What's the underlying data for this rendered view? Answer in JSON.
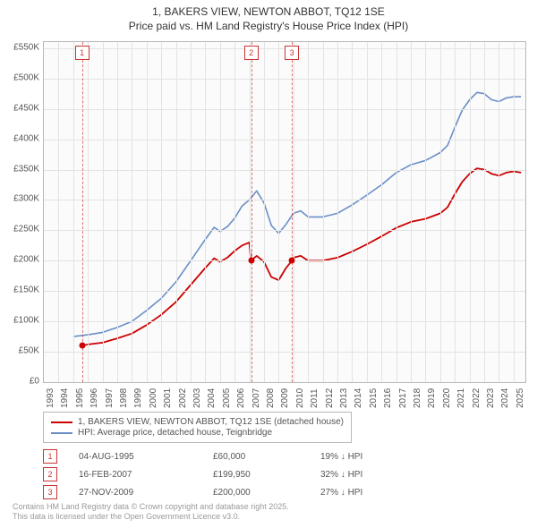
{
  "title": {
    "line1": "1, BAKERS VIEW, NEWTON ABBOT, TQ12 1SE",
    "line2": "Price paid vs. HM Land Registry's House Price Index (HPI)",
    "fontsize": 12,
    "color": "#333333"
  },
  "chart": {
    "type": "line",
    "background_color": "#fbfbfb",
    "border_color": "#b8b8b8",
    "grid_color": "#e3e3e3",
    "x": {
      "min": 1993,
      "max": 2025.8,
      "ticks": [
        1993,
        1994,
        1995,
        1996,
        1997,
        1998,
        1999,
        2000,
        2001,
        2002,
        2003,
        2004,
        2005,
        2006,
        2007,
        2008,
        2009,
        2010,
        2011,
        2012,
        2013,
        2014,
        2015,
        2016,
        2017,
        2018,
        2019,
        2020,
        2021,
        2022,
        2023,
        2024,
        2025
      ],
      "label_fontsize": 10
    },
    "y": {
      "min": 0,
      "max": 560000,
      "ticks": [
        0,
        50000,
        100000,
        150000,
        200000,
        250000,
        300000,
        350000,
        400000,
        450000,
        500000,
        550000
      ],
      "tick_labels": [
        "£0",
        "£50K",
        "£100K",
        "£150K",
        "£200K",
        "£250K",
        "£300K",
        "£350K",
        "£400K",
        "£450K",
        "£500K",
        "£550K"
      ],
      "label_fontsize": 10
    },
    "series": [
      {
        "id": "hpi",
        "label": "HPI: Average price, detached house, Teignbridge",
        "color": "#6a8fc7",
        "width": 1.6,
        "points": [
          [
            1995.0,
            75000
          ],
          [
            1996.0,
            78000
          ],
          [
            1997.0,
            82000
          ],
          [
            1998.0,
            90000
          ],
          [
            1999.0,
            100000
          ],
          [
            2000.0,
            118000
          ],
          [
            2001.0,
            138000
          ],
          [
            2002.0,
            165000
          ],
          [
            2003.0,
            200000
          ],
          [
            2004.0,
            235000
          ],
          [
            2004.6,
            255000
          ],
          [
            2005.0,
            248000
          ],
          [
            2005.5,
            256000
          ],
          [
            2006.0,
            270000
          ],
          [
            2006.5,
            290000
          ],
          [
            2007.0,
            300000
          ],
          [
            2007.5,
            315000
          ],
          [
            2008.0,
            295000
          ],
          [
            2008.5,
            258000
          ],
          [
            2009.0,
            245000
          ],
          [
            2009.5,
            260000
          ],
          [
            2010.0,
            278000
          ],
          [
            2010.5,
            282000
          ],
          [
            2011.0,
            272000
          ],
          [
            2012.0,
            272000
          ],
          [
            2013.0,
            278000
          ],
          [
            2014.0,
            292000
          ],
          [
            2015.0,
            308000
          ],
          [
            2016.0,
            325000
          ],
          [
            2017.0,
            345000
          ],
          [
            2018.0,
            358000
          ],
          [
            2019.0,
            365000
          ],
          [
            2020.0,
            378000
          ],
          [
            2020.5,
            390000
          ],
          [
            2021.0,
            420000
          ],
          [
            2021.5,
            448000
          ],
          [
            2022.0,
            465000
          ],
          [
            2022.5,
            477000
          ],
          [
            2023.0,
            475000
          ],
          [
            2023.5,
            465000
          ],
          [
            2024.0,
            462000
          ],
          [
            2024.5,
            468000
          ],
          [
            2025.0,
            470000
          ],
          [
            2025.5,
            470000
          ]
        ]
      },
      {
        "id": "subject",
        "label": "1, BAKERS VIEW, NEWTON ABBOT, TQ12 1SE (detached house)",
        "color": "#cc0000",
        "width": 1.8,
        "points": [
          [
            1995.6,
            60000
          ],
          [
            1996.0,
            62000
          ],
          [
            1997.0,
            65000
          ],
          [
            1998.0,
            72000
          ],
          [
            1999.0,
            80000
          ],
          [
            2000.0,
            94000
          ],
          [
            2001.0,
            111000
          ],
          [
            2002.0,
            132000
          ],
          [
            2003.0,
            160000
          ],
          [
            2004.0,
            188000
          ],
          [
            2004.6,
            204000
          ],
          [
            2005.0,
            198000
          ],
          [
            2005.5,
            205000
          ],
          [
            2006.0,
            216000
          ],
          [
            2006.5,
            225000
          ],
          [
            2007.0,
            230000
          ],
          [
            2007.1,
            199950
          ],
          [
            2007.5,
            208000
          ],
          [
            2008.0,
            198000
          ],
          [
            2008.5,
            173000
          ],
          [
            2009.0,
            168000
          ],
          [
            2009.5,
            188000
          ],
          [
            2009.9,
            200000
          ],
          [
            2010.0,
            205000
          ],
          [
            2010.5,
            208000
          ],
          [
            2011.0,
            200000
          ],
          [
            2012.0,
            200000
          ],
          [
            2013.0,
            205000
          ],
          [
            2014.0,
            215000
          ],
          [
            2015.0,
            227000
          ],
          [
            2016.0,
            240000
          ],
          [
            2017.0,
            254000
          ],
          [
            2018.0,
            264000
          ],
          [
            2019.0,
            269000
          ],
          [
            2020.0,
            278000
          ],
          [
            2020.5,
            288000
          ],
          [
            2021.0,
            310000
          ],
          [
            2021.5,
            330000
          ],
          [
            2022.0,
            343000
          ],
          [
            2022.5,
            352000
          ],
          [
            2023.0,
            350000
          ],
          [
            2023.5,
            343000
          ],
          [
            2024.0,
            340000
          ],
          [
            2024.5,
            345000
          ],
          [
            2025.0,
            347000
          ],
          [
            2025.5,
            345000
          ]
        ]
      }
    ],
    "markers": [
      {
        "n": "1",
        "year": 1995.6
      },
      {
        "n": "2",
        "year": 2007.12
      },
      {
        "n": "3",
        "year": 2009.9
      }
    ],
    "sale_dots": [
      {
        "year": 1995.6,
        "price": 60000
      },
      {
        "year": 2007.12,
        "price": 199950
      },
      {
        "year": 2009.9,
        "price": 200000
      }
    ]
  },
  "legend": {
    "border_color": "#b8b8b8",
    "fontsize": 10,
    "items": [
      {
        "label": "1, BAKERS VIEW, NEWTON ABBOT, TQ12 1SE (detached house)",
        "color": "#cc0000"
      },
      {
        "label": "HPI: Average price, detached house, Teignbridge",
        "color": "#6a8fc7"
      }
    ]
  },
  "sales": [
    {
      "n": "1",
      "date": "04-AUG-1995",
      "price": "£60,000",
      "diff": "19% ↓ HPI"
    },
    {
      "n": "2",
      "date": "16-FEB-2007",
      "price": "£199,950",
      "diff": "32% ↓ HPI"
    },
    {
      "n": "3",
      "date": "27-NOV-2009",
      "price": "£200,000",
      "diff": "27% ↓ HPI"
    }
  ],
  "footer": {
    "line1": "Contains HM Land Registry data © Crown copyright and database right 2025.",
    "line2": "This data is licensed under the Open Government Licence v3.0.",
    "color": "#999999",
    "fontsize": 9
  }
}
